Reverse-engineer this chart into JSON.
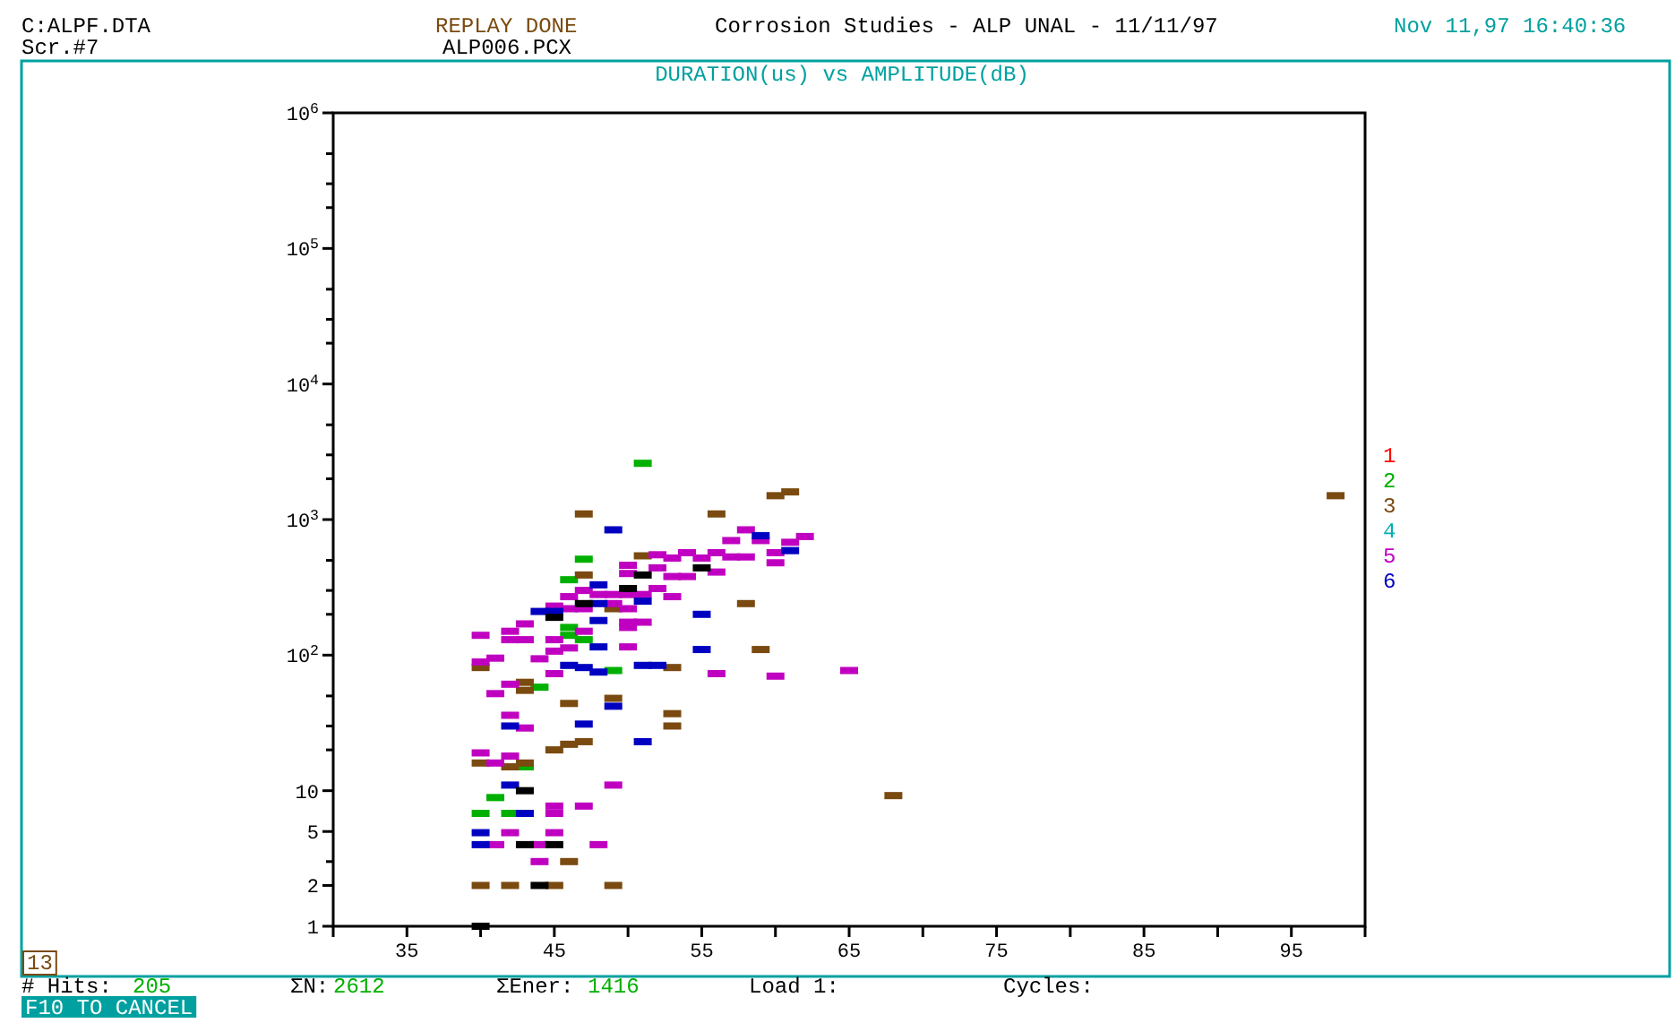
{
  "chart_data": {
    "type": "scatter",
    "title": "DURATION(us) vs AMPLITUDE(dB)",
    "log": "y",
    "legend": "right",
    "grid": false,
    "xlim": [
      30,
      100
    ],
    "xticks": [
      {
        "value": 30,
        "label": null
      },
      35,
      {
        "value": 40,
        "label": null
      },
      45,
      {
        "value": 50,
        "label": null
      },
      55,
      {
        "value": 60,
        "label": null
      },
      65,
      {
        "value": 70,
        "label": null
      },
      75,
      {
        "value": 80,
        "label": null
      },
      85,
      {
        "value": 90,
        "label": null
      },
      95,
      {
        "value": 100,
        "label": null
      }
    ],
    "ylim": [
      1,
      1000000
    ],
    "yticks": [
      1,
      2,
      {
        "value": 3,
        "label": null
      },
      5,
      10,
      {
        "value": 20,
        "label": null
      },
      {
        "value": 30,
        "label": null
      },
      {
        "value": 50,
        "label": null
      },
      {
        "value": 100,
        "label": "10$^{2}$"
      },
      {
        "value": 200,
        "label": null
      },
      {
        "value": 300,
        "label": null
      },
      {
        "value": 500,
        "label": null
      },
      {
        "value": 1000,
        "label": "10$^{3}$"
      },
      {
        "value": 2000,
        "label": null
      },
      {
        "value": 3000,
        "label": null
      },
      {
        "value": 5000,
        "label": null
      },
      {
        "value": 10000,
        "label": "10$^{4}$"
      },
      {
        "value": 20000,
        "label": null
      },
      {
        "value": 30000,
        "label": null
      },
      {
        "value": 50000,
        "label": null
      },
      {
        "value": 100000,
        "label": "10$^{5}$"
      },
      {
        "value": 200000,
        "label": null
      },
      {
        "value": 300000,
        "label": null
      },
      {
        "value": 500000,
        "label": null
      },
      {
        "value": 1000000,
        "label": "10$^{6}$"
      }
    ],
    "series": [
      {
        "name": "1",
        "color": "#ff0000"
      },
      {
        "name": "2",
        "color": "#00b000",
        "x": [
          51,
          47,
          46,
          46,
          46,
          47,
          49,
          44,
          43,
          41,
          40,
          42
        ],
        "values": [
          2600,
          510,
          360,
          160,
          140,
          130,
          77,
          58,
          15,
          8.9,
          6.8,
          6.8
        ]
      },
      {
        "name": "3",
        "color": "#7a4a10",
        "x": [
          47,
          56,
          60,
          61,
          51,
          49,
          58,
          59,
          53,
          40,
          43,
          43,
          46,
          49,
          53,
          53,
          47,
          46,
          45,
          40,
          43,
          42,
          47,
          98,
          68,
          46,
          40,
          42,
          45,
          49
        ],
        "values": [
          1100,
          1100,
          1500,
          1600,
          540,
          220,
          240,
          110,
          81,
          81,
          63,
          55,
          44,
          48,
          37,
          30,
          23,
          22,
          20,
          16,
          16,
          15,
          390,
          1500,
          9.2,
          3,
          2,
          2,
          2,
          2
        ]
      },
      {
        "name": "4",
        "color": "#00b0b0"
      },
      {
        "name": "5",
        "color": "#c000c0",
        "x": [
          58,
          59,
          57,
          62,
          61,
          60,
          60,
          56,
          57,
          58,
          56,
          55,
          52,
          53,
          54,
          54,
          53,
          52,
          50,
          50,
          52,
          50,
          49,
          49,
          50,
          50,
          51,
          53,
          50,
          51,
          50,
          56,
          60,
          65,
          40,
          40,
          41,
          41,
          42,
          42,
          43,
          43,
          42,
          44,
          45,
          45,
          45,
          46,
          45,
          46,
          47,
          47,
          48,
          46,
          47,
          42,
          43,
          40,
          42,
          41,
          49,
          45,
          47,
          45,
          42,
          45,
          41,
          44,
          48,
          44
        ],
        "values": [
          840,
          700,
          700,
          750,
          680,
          570,
          480,
          570,
          530,
          530,
          410,
          520,
          550,
          520,
          570,
          380,
          380,
          440,
          460,
          400,
          310,
          280,
          280,
          240,
          220,
          160,
          280,
          270,
          175,
          175,
          115,
          73,
          70,
          77,
          140,
          89,
          95,
          52,
          150,
          130,
          130,
          170,
          61,
          94,
          73,
          107,
          130,
          113,
          230,
          220,
          220,
          300,
          280,
          270,
          150,
          36,
          29,
          19,
          18,
          16,
          11,
          7.7,
          7.7,
          6.8,
          4.9,
          4.9,
          4,
          4,
          4,
          3
        ]
      },
      {
        "name": "6",
        "color": "#0000c0",
        "x": [
          49,
          59,
          61,
          55,
          55,
          51,
          52,
          46,
          47,
          48,
          44,
          45,
          48,
          48,
          48,
          48,
          51,
          49,
          42,
          47,
          51,
          42,
          43,
          40,
          40
        ],
        "values": [
          840,
          760,
          590,
          200,
          110,
          84,
          84,
          84,
          81,
          75,
          210,
          210,
          330,
          240,
          180,
          115,
          250,
          42,
          30,
          31,
          23,
          11,
          6.8,
          4.9,
          4
        ]
      },
      {
        "color": "#000000",
        "x": [
          51,
          55,
          50,
          45,
          47,
          43,
          43,
          45,
          44,
          40
        ],
        "values": [
          390,
          440,
          310,
          190,
          240,
          10,
          4,
          4,
          2,
          1
        ]
      }
    ],
    "annotations": [
      "C:ALPF.DTA",
      "Scr.#7",
      "REPLAY DONE",
      "ALP006.PCX",
      "Corrosion Studies - ALP UNAL - 11/11/97",
      "Nov 11,97 16:40:36",
      "13",
      "# Hits:",
      "205",
      "ΣN:",
      "2612",
      "ΣEner:",
      "1416",
      "Load 1:",
      "Cycles:",
      "F10 TO CANCEL"
    ]
  }
}
